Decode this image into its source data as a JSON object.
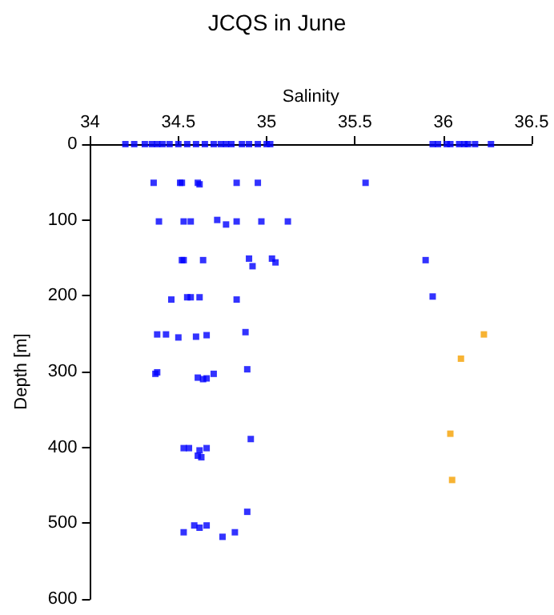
{
  "chart_data": {
    "type": "scatter",
    "title": "JCQS in June",
    "xlabel": "Salinity",
    "ylabel": "Depth [m]",
    "xlim": [
      34,
      36.5
    ],
    "xticks": [
      34,
      34.5,
      35,
      35.5,
      36,
      36.5
    ],
    "ylim": [
      600,
      0
    ],
    "yticks": [
      0,
      100,
      200,
      300,
      400,
      500,
      600
    ],
    "grid": false,
    "marker": "square",
    "series": [
      {
        "color": "#0000ff",
        "x": [
          34.2,
          34.25,
          34.31,
          34.35,
          34.38,
          34.41,
          34.45,
          34.5,
          34.55,
          34.6,
          34.65,
          34.7,
          34.74,
          34.77,
          34.8,
          34.86,
          34.9,
          34.95,
          35,
          35.02,
          35.94,
          35.97,
          36.02,
          36.04,
          36.09,
          36.12,
          36.14,
          36.18,
          36.27,
          34.36,
          34.51,
          34.52,
          34.61,
          34.62,
          34.83,
          34.95,
          35.56,
          34.39,
          34.53,
          34.57,
          34.72,
          34.77,
          34.83,
          34.97,
          35.12,
          34.52,
          34.53,
          34.64,
          34.9,
          34.92,
          35.03,
          35.05,
          35.9,
          34.46,
          34.55,
          34.57,
          34.62,
          34.83,
          35.94,
          34.38,
          34.43,
          34.5,
          34.6,
          34.66,
          34.88,
          34.37,
          34.38,
          34.61,
          34.64,
          34.66,
          34.7,
          34.89,
          34.53,
          34.56,
          34.66,
          34.61,
          34.63,
          34.62,
          34.91,
          34.53,
          34.59,
          34.62,
          34.66,
          34.75,
          34.82,
          34.89
        ],
        "values": [
          0,
          0,
          0,
          0,
          0,
          0,
          0,
          0,
          0,
          0,
          0,
          0,
          0,
          0,
          0,
          0,
          0,
          0,
          0,
          0,
          0,
          0,
          0,
          0,
          0,
          0,
          0,
          0,
          0,
          51,
          51,
          51,
          51,
          53,
          51,
          51,
          51,
          102,
          102,
          102,
          100,
          106,
          102,
          102,
          102,
          153,
          153,
          153,
          151,
          161,
          151,
          156,
          153,
          205,
          202,
          202,
          202,
          205,
          201,
          251,
          251,
          255,
          254,
          252,
          248,
          303,
          301,
          308,
          310,
          309,
          303,
          297,
          401,
          401,
          401,
          411,
          413,
          404,
          389,
          512,
          503,
          506,
          503,
          518,
          512,
          485
        ]
      },
      {
        "color": "#f5a000",
        "x": [
          36.23,
          36.1,
          36.04,
          36.05
        ],
        "values": [
          251,
          283,
          382,
          443
        ]
      }
    ]
  }
}
